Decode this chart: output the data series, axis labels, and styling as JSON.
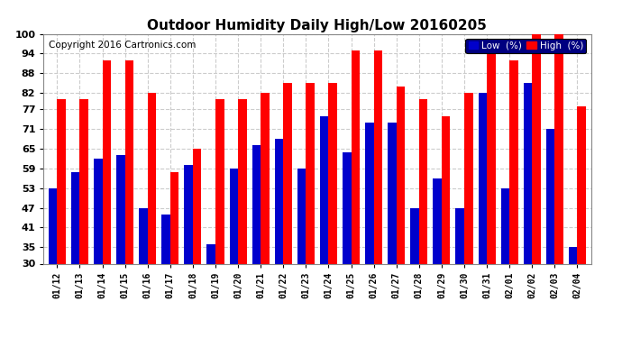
{
  "title": "Outdoor Humidity Daily High/Low 20160205",
  "copyright": "Copyright 2016 Cartronics.com",
  "categories": [
    "01/12",
    "01/13",
    "01/14",
    "01/15",
    "01/16",
    "01/17",
    "01/18",
    "01/19",
    "01/20",
    "01/21",
    "01/22",
    "01/23",
    "01/24",
    "01/25",
    "01/26",
    "01/27",
    "01/28",
    "01/29",
    "01/30",
    "01/31",
    "02/01",
    "02/02",
    "02/03",
    "02/04"
  ],
  "high": [
    80,
    80,
    92,
    92,
    82,
    58,
    65,
    80,
    80,
    82,
    85,
    85,
    85,
    95,
    95,
    84,
    80,
    75,
    82,
    95,
    92,
    100,
    100,
    78
  ],
  "low": [
    53,
    58,
    62,
    63,
    47,
    45,
    60,
    36,
    59,
    66,
    68,
    59,
    75,
    64,
    73,
    73,
    47,
    56,
    47,
    82,
    53,
    85,
    71,
    35
  ],
  "ylim_min": 30,
  "ylim_max": 100,
  "ytick_positions": [
    30,
    35,
    41,
    47,
    53,
    59,
    65,
    71,
    77,
    82,
    88,
    94,
    100
  ],
  "ytick_labels": [
    "30",
    "35",
    "41",
    "47",
    "53",
    "59",
    "65",
    "71",
    "77",
    "82",
    "88",
    "94",
    "100"
  ],
  "bar_width": 0.38,
  "high_color": "#ff0000",
  "low_color": "#0000cc",
  "bg_color": "#ffffff",
  "grid_color": "#cccccc",
  "title_fontsize": 11,
  "copyright_fontsize": 7.5,
  "tick_fontsize": 8,
  "xtick_fontsize": 7,
  "legend_low_label": "Low  (%)",
  "legend_high_label": "High  (%)"
}
